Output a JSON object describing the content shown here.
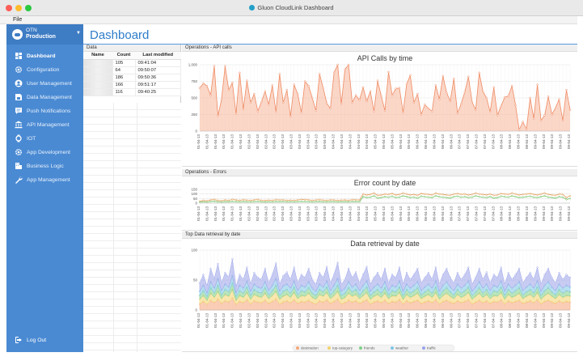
{
  "window": {
    "title": "Gluon CloudLink Dashboard"
  },
  "menu": {
    "file": "File"
  },
  "sidebar": {
    "env_label": "OTN",
    "env_name": "Production",
    "items": [
      {
        "label": "Dashboard",
        "icon": "dashboard-icon",
        "active": true
      },
      {
        "label": "Configuration",
        "icon": "gear-icon"
      },
      {
        "label": "User Management",
        "icon": "user-icon"
      },
      {
        "label": "Data Management",
        "icon": "database-icon"
      },
      {
        "label": "Push Notifications",
        "icon": "chat-icon"
      },
      {
        "label": "API Management",
        "icon": "bank-icon"
      },
      {
        "label": "IOT",
        "icon": "watch-icon"
      },
      {
        "label": "App Development",
        "icon": "gear-icon"
      },
      {
        "label": "Business Logic",
        "icon": "building-icon"
      },
      {
        "label": "App Management",
        "icon": "wrench-icon"
      }
    ],
    "logout": "Log Out"
  },
  "header": {
    "title": "Dashboard"
  },
  "data_panel": {
    "title": "Data",
    "columns": [
      "Name",
      "Count",
      "Last modified"
    ],
    "rows": [
      {
        "count": "105",
        "modified": "09:41:04"
      },
      {
        "count": "64",
        "modified": "09:50:07"
      },
      {
        "count": "186",
        "modified": "09:50:36"
      },
      {
        "count": "166",
        "modified": "09:51:17"
      },
      {
        "count": "116",
        "modified": "09:40:25"
      }
    ]
  },
  "panels": {
    "api_title": "Operations - API calls",
    "errors_title": "Operations - Errors",
    "retrieval_title": "Top Data retrieval by date"
  },
  "colors": {
    "sidebar": "#4a8ad3",
    "accent": "#2f7dc9"
  },
  "chart_data": [
    {
      "type": "area",
      "title": "API Calls by time",
      "ylim": [
        0,
        1000
      ],
      "yticks": [
        "0",
        "250",
        "500",
        "750",
        "1,000"
      ],
      "xticks": [
        "01-04-13",
        "01-04-13",
        "01-04-13",
        "01-04-13",
        "01-04-13",
        "01-04-13",
        "02-04-13",
        "02-04-13",
        "02-04-13",
        "02-04-13",
        "02-04-13",
        "03-04-13",
        "03-04-13",
        "03-04-13",
        "03-04-13",
        "03-04-13",
        "04-04-13",
        "04-04-13",
        "04-04-13",
        "04-04-13",
        "04-04-13",
        "05-04-13",
        "05-04-13",
        "05-04-13",
        "05-04-13",
        "05-04-13",
        "06-04-13",
        "06-04-13",
        "06-04-13",
        "06-04-13",
        "06-04-13",
        "07-04-13",
        "07-04-13",
        "07-04-13",
        "07-04-13",
        "07-04-13",
        "08-04-13",
        "08-04-13",
        "08-04-13",
        "08-04-13",
        "09-04-13",
        "09-04-13",
        "09-04-13",
        "09-04-13",
        "09-04-13"
      ],
      "series": [
        {
          "values": [
            650,
            720,
            680,
            540,
            980,
            230,
            470,
            980,
            620,
            730,
            260,
            880,
            330,
            760,
            430,
            560,
            300,
            440,
            600,
            400,
            690,
            290,
            860,
            430,
            620,
            220,
            700,
            560,
            280,
            750,
            680,
            500,
            310,
            860,
            650,
            420,
            340,
            880,
            1000,
            410,
            930,
            1000,
            430,
            540,
            470,
            660,
            450,
            600,
            300,
            760,
            530,
            310,
            890,
            540,
            640,
            650,
            280,
            710,
            840,
            430,
            560,
            250,
            400,
            340,
            300,
            690,
            480,
            830,
            580,
            450,
            790,
            270,
            410,
            590,
            820,
            440,
            320,
            880,
            600,
            500,
            290,
            660,
            240,
            380,
            510,
            530,
            680,
            390,
            20,
            140,
            30,
            500,
            190,
            700,
            160,
            240,
            520,
            250,
            350,
            480,
            160,
            620,
            320
          ]
        }
      ]
    },
    {
      "type": "line",
      "title": "Error count by date",
      "ylim": [
        0,
        150
      ],
      "yticks": [
        "0",
        "50",
        "100",
        "150"
      ],
      "series": [
        {
          "values": [
            20,
            30,
            25,
            35,
            40,
            30,
            25,
            35,
            30,
            40,
            35,
            30,
            38,
            32,
            30,
            35,
            40,
            30,
            28,
            32,
            30,
            38,
            34,
            36,
            30,
            32,
            30,
            35,
            40,
            38,
            36,
            30,
            34,
            38,
            32,
            30,
            36,
            34,
            30,
            32,
            35,
            30,
            38,
            36,
            34,
            100,
            90,
            95,
            110,
            85,
            90,
            100,
            95,
            105,
            90,
            95,
            110,
            100,
            90,
            95,
            85,
            105,
            100,
            95,
            90,
            110,
            100,
            95,
            90,
            85,
            100,
            105,
            95,
            100,
            90,
            95,
            110,
            100,
            95,
            90,
            100,
            85,
            90,
            105,
            100,
            95,
            110,
            100,
            90,
            95,
            100,
            105,
            95,
            90,
            100,
            110,
            95,
            90,
            85,
            100,
            95,
            60,
            80
          ]
        },
        {
          "values": [
            10,
            15,
            12,
            18,
            20,
            14,
            12,
            16,
            15,
            18,
            16,
            14,
            17,
            15,
            14,
            16,
            18,
            15,
            13,
            15,
            14,
            17,
            16,
            17,
            14,
            15,
            14,
            16,
            18,
            17,
            16,
            14,
            16,
            17,
            15,
            14,
            16,
            16,
            14,
            15,
            16,
            14,
            17,
            16,
            16,
            70,
            60,
            65,
            80,
            55,
            60,
            70,
            65,
            75,
            60,
            65,
            80,
            70,
            60,
            65,
            55,
            75,
            70,
            65,
            60,
            80,
            70,
            65,
            60,
            55,
            70,
            75,
            65,
            70,
            60,
            65,
            80,
            70,
            65,
            60,
            70,
            55,
            60,
            75,
            70,
            65,
            80,
            70,
            60,
            65,
            70,
            75,
            65,
            60,
            70,
            80,
            65,
            60,
            55,
            70,
            65,
            40,
            50
          ]
        }
      ]
    },
    {
      "type": "area",
      "title": "Data retrieval by date",
      "ylim": [
        0,
        100
      ],
      "yticks": [
        "0",
        "50",
        "100"
      ],
      "series": [
        {
          "name": "destination",
          "color": "#f6a67a",
          "values": [
            10,
            14,
            9,
            16,
            12,
            18,
            11,
            15,
            13,
            20,
            9,
            14,
            12,
            17,
            10,
            15,
            13,
            12,
            16,
            11,
            14,
            18,
            10,
            13,
            15,
            12,
            17,
            11,
            14,
            13,
            16,
            12,
            10,
            15,
            13,
            17,
            11,
            14,
            18,
            10,
            12,
            16,
            13,
            15,
            11,
            14,
            17,
            10,
            13,
            15,
            12,
            16,
            11,
            14,
            13,
            17,
            10,
            15,
            12,
            14,
            16,
            11,
            13,
            15,
            12,
            17,
            10,
            14,
            16,
            13,
            11,
            15,
            12,
            14,
            17,
            10,
            13,
            16,
            12,
            15,
            11,
            14,
            13,
            17,
            10,
            15,
            12,
            14,
            16,
            11,
            13,
            15,
            12,
            17,
            10,
            14,
            16,
            13,
            11,
            15,
            12,
            14,
            13
          ]
        },
        {
          "name": "top-category",
          "color": "#f2d36b",
          "values": [
            8,
            10,
            7,
            12,
            9,
            13,
            8,
            11,
            10,
            14,
            7,
            10,
            9,
            12,
            8,
            11,
            10,
            9,
            12,
            8,
            10,
            13,
            8,
            10,
            11,
            9,
            12,
            8,
            10,
            10,
            12,
            9,
            8,
            11,
            10,
            12,
            8,
            10,
            13,
            8,
            9,
            12,
            10,
            11,
            8,
            10,
            12,
            8,
            10,
            11,
            9,
            12,
            8,
            10,
            10,
            12,
            8,
            11,
            9,
            10,
            12,
            8,
            10,
            11,
            9,
            12,
            8,
            10,
            12,
            10,
            8,
            11,
            9,
            10,
            12,
            8,
            10,
            12,
            9,
            11,
            8,
            10,
            10,
            12,
            8,
            11,
            9,
            10,
            12,
            8,
            10,
            11,
            9,
            12,
            8,
            10,
            12,
            10,
            8,
            11,
            9,
            10,
            10
          ]
        },
        {
          "name": "friends",
          "color": "#7fd08a",
          "values": [
            6,
            8,
            6,
            9,
            7,
            10,
            6,
            8,
            7,
            11,
            6,
            8,
            7,
            9,
            6,
            8,
            7,
            7,
            9,
            6,
            8,
            10,
            6,
            8,
            8,
            7,
            9,
            6,
            8,
            7,
            9,
            7,
            6,
            8,
            7,
            9,
            6,
            8,
            10,
            6,
            7,
            9,
            7,
            8,
            6,
            8,
            9,
            6,
            7,
            8,
            7,
            9,
            6,
            8,
            7,
            9,
            6,
            8,
            7,
            8,
            9,
            6,
            7,
            8,
            7,
            9,
            6,
            8,
            9,
            7,
            6,
            8,
            7,
            8,
            9,
            6,
            7,
            9,
            7,
            8,
            6,
            8,
            7,
            9,
            6,
            8,
            7,
            8,
            9,
            6,
            7,
            8,
            7,
            9,
            6,
            8,
            9,
            7,
            6,
            8,
            7,
            8,
            7
          ]
        },
        {
          "name": "weather",
          "color": "#7ec6e6",
          "values": [
            7,
            9,
            6,
            10,
            8,
            11,
            7,
            9,
            8,
            12,
            6,
            9,
            8,
            10,
            7,
            9,
            8,
            8,
            10,
            7,
            9,
            11,
            7,
            9,
            9,
            8,
            10,
            7,
            9,
            8,
            10,
            8,
            7,
            9,
            8,
            10,
            7,
            9,
            11,
            7,
            8,
            10,
            8,
            9,
            7,
            9,
            10,
            7,
            8,
            9,
            8,
            10,
            7,
            9,
            8,
            10,
            7,
            9,
            8,
            9,
            10,
            7,
            8,
            9,
            8,
            10,
            7,
            9,
            10,
            8,
            7,
            9,
            8,
            9,
            10,
            7,
            8,
            10,
            8,
            9,
            7,
            9,
            8,
            10,
            7,
            9,
            8,
            9,
            10,
            7,
            8,
            9,
            8,
            10,
            7,
            9,
            10,
            8,
            7,
            9,
            8,
            9,
            8
          ]
        },
        {
          "name": "traffic",
          "color": "#9aa3ea",
          "values": [
            14,
            18,
            12,
            22,
            16,
            25,
            13,
            19,
            17,
            28,
            11,
            18,
            15,
            23,
            12,
            19,
            16,
            15,
            22,
            13,
            18,
            26,
            12,
            17,
            20,
            15,
            23,
            13,
            18,
            16,
            22,
            15,
            12,
            19,
            16,
            24,
            13,
            18,
            27,
            12,
            15,
            22,
            16,
            20,
            13,
            18,
            24,
            12,
            16,
            19,
            15,
            22,
            13,
            18,
            16,
            23,
            12,
            19,
            15,
            18,
            22,
            13,
            16,
            19,
            15,
            23,
            12,
            18,
            22,
            16,
            13,
            19,
            15,
            18,
            23,
            12,
            16,
            22,
            15,
            20,
            13,
            18,
            16,
            23,
            12,
            19,
            15,
            18,
            22,
            13,
            16,
            19,
            15,
            23,
            12,
            18,
            22,
            16,
            13,
            19,
            15,
            18,
            16
          ]
        }
      ]
    }
  ]
}
